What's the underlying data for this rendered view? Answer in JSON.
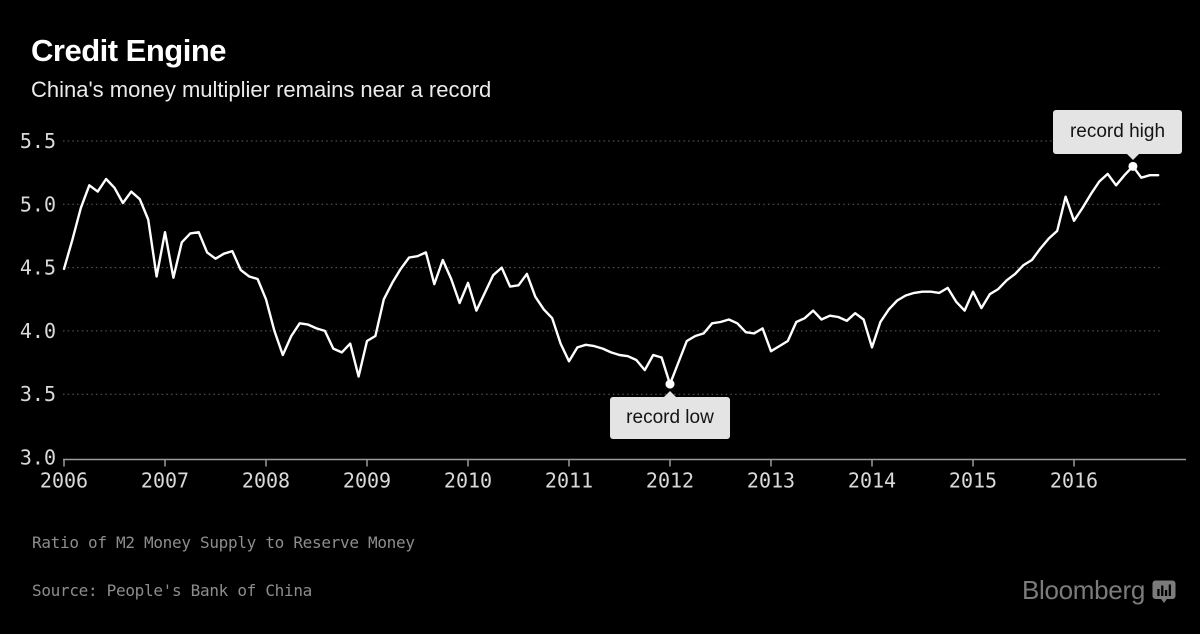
{
  "header": {
    "title": "Credit Engine",
    "subtitle": "China's money multiplier remains near a record"
  },
  "chart_data": {
    "type": "line",
    "title": "Credit Engine",
    "subtitle": "China's money multiplier remains near a record",
    "frequency": "monthly",
    "x_start": "2006-01",
    "x_end": "2016-11",
    "x_tick_labels": [
      "2006",
      "2007",
      "2008",
      "2009",
      "2010",
      "2011",
      "2012",
      "2013",
      "2014",
      "2015",
      "2016"
    ],
    "y_tick_labels": [
      "5.5",
      "5.0",
      "4.5",
      "4.0",
      "3.5",
      "3.0"
    ],
    "ylim": [
      3.0,
      5.5
    ],
    "grid": "horizontal dotted",
    "legend": "none",
    "series": [
      {
        "name": "Ratio of M2 Money Supply to Reserve Money",
        "values": [
          4.49,
          4.72,
          4.97,
          5.15,
          5.1,
          5.2,
          5.13,
          5.01,
          5.1,
          5.04,
          4.88,
          4.43,
          4.78,
          4.42,
          4.7,
          4.77,
          4.78,
          4.62,
          4.57,
          4.61,
          4.63,
          4.48,
          4.43,
          4.41,
          4.25,
          4.0,
          3.81,
          3.96,
          4.06,
          4.05,
          4.02,
          4.0,
          3.86,
          3.83,
          3.9,
          3.64,
          3.92,
          3.96,
          4.25,
          4.38,
          4.49,
          4.58,
          4.59,
          4.62,
          4.37,
          4.56,
          4.41,
          4.22,
          4.38,
          4.16,
          4.3,
          4.44,
          4.5,
          4.35,
          4.36,
          4.45,
          4.27,
          4.17,
          4.1,
          3.9,
          3.76,
          3.87,
          3.89,
          3.88,
          3.86,
          3.83,
          3.81,
          3.8,
          3.77,
          3.69,
          3.81,
          3.79,
          3.58,
          3.75,
          3.92,
          3.96,
          3.98,
          4.06,
          4.07,
          4.09,
          4.06,
          3.99,
          3.98,
          4.02,
          3.84,
          3.88,
          3.92,
          4.07,
          4.1,
          4.16,
          4.09,
          4.12,
          4.11,
          4.08,
          4.14,
          4.09,
          3.87,
          4.07,
          4.17,
          4.24,
          4.28,
          4.3,
          4.31,
          4.31,
          4.3,
          4.34,
          4.23,
          4.16,
          4.31,
          4.18,
          4.29,
          4.33,
          4.4,
          4.45,
          4.52,
          4.56,
          4.65,
          4.73,
          4.79,
          5.06,
          4.87,
          4.97,
          5.08,
          5.18,
          5.24,
          5.15,
          5.23,
          5.3,
          5.21,
          5.23,
          5.23
        ]
      }
    ],
    "annotations": [
      {
        "label": "record low",
        "x": "2012-01",
        "value": 3.58
      },
      {
        "label": "record high",
        "x": "2016-08",
        "value": 5.3
      }
    ]
  },
  "footer": {
    "note": "Ratio of M2 Money Supply to Reserve Money",
    "source": "Source: People's Bank of China",
    "brand": "Bloomberg"
  },
  "colors": {
    "background": "#000000",
    "line": "#ffffff",
    "grid": "#616161",
    "axis": "#9b9b9b",
    "axis_text": "#d9d9d9",
    "title": "#ffffff",
    "subtitle": "#ebebeb",
    "footer_text": "#8d8d8d",
    "annotation_bg": "#e4e4e4",
    "annotation_text": "#141414",
    "brand": "#7b7b7b"
  }
}
